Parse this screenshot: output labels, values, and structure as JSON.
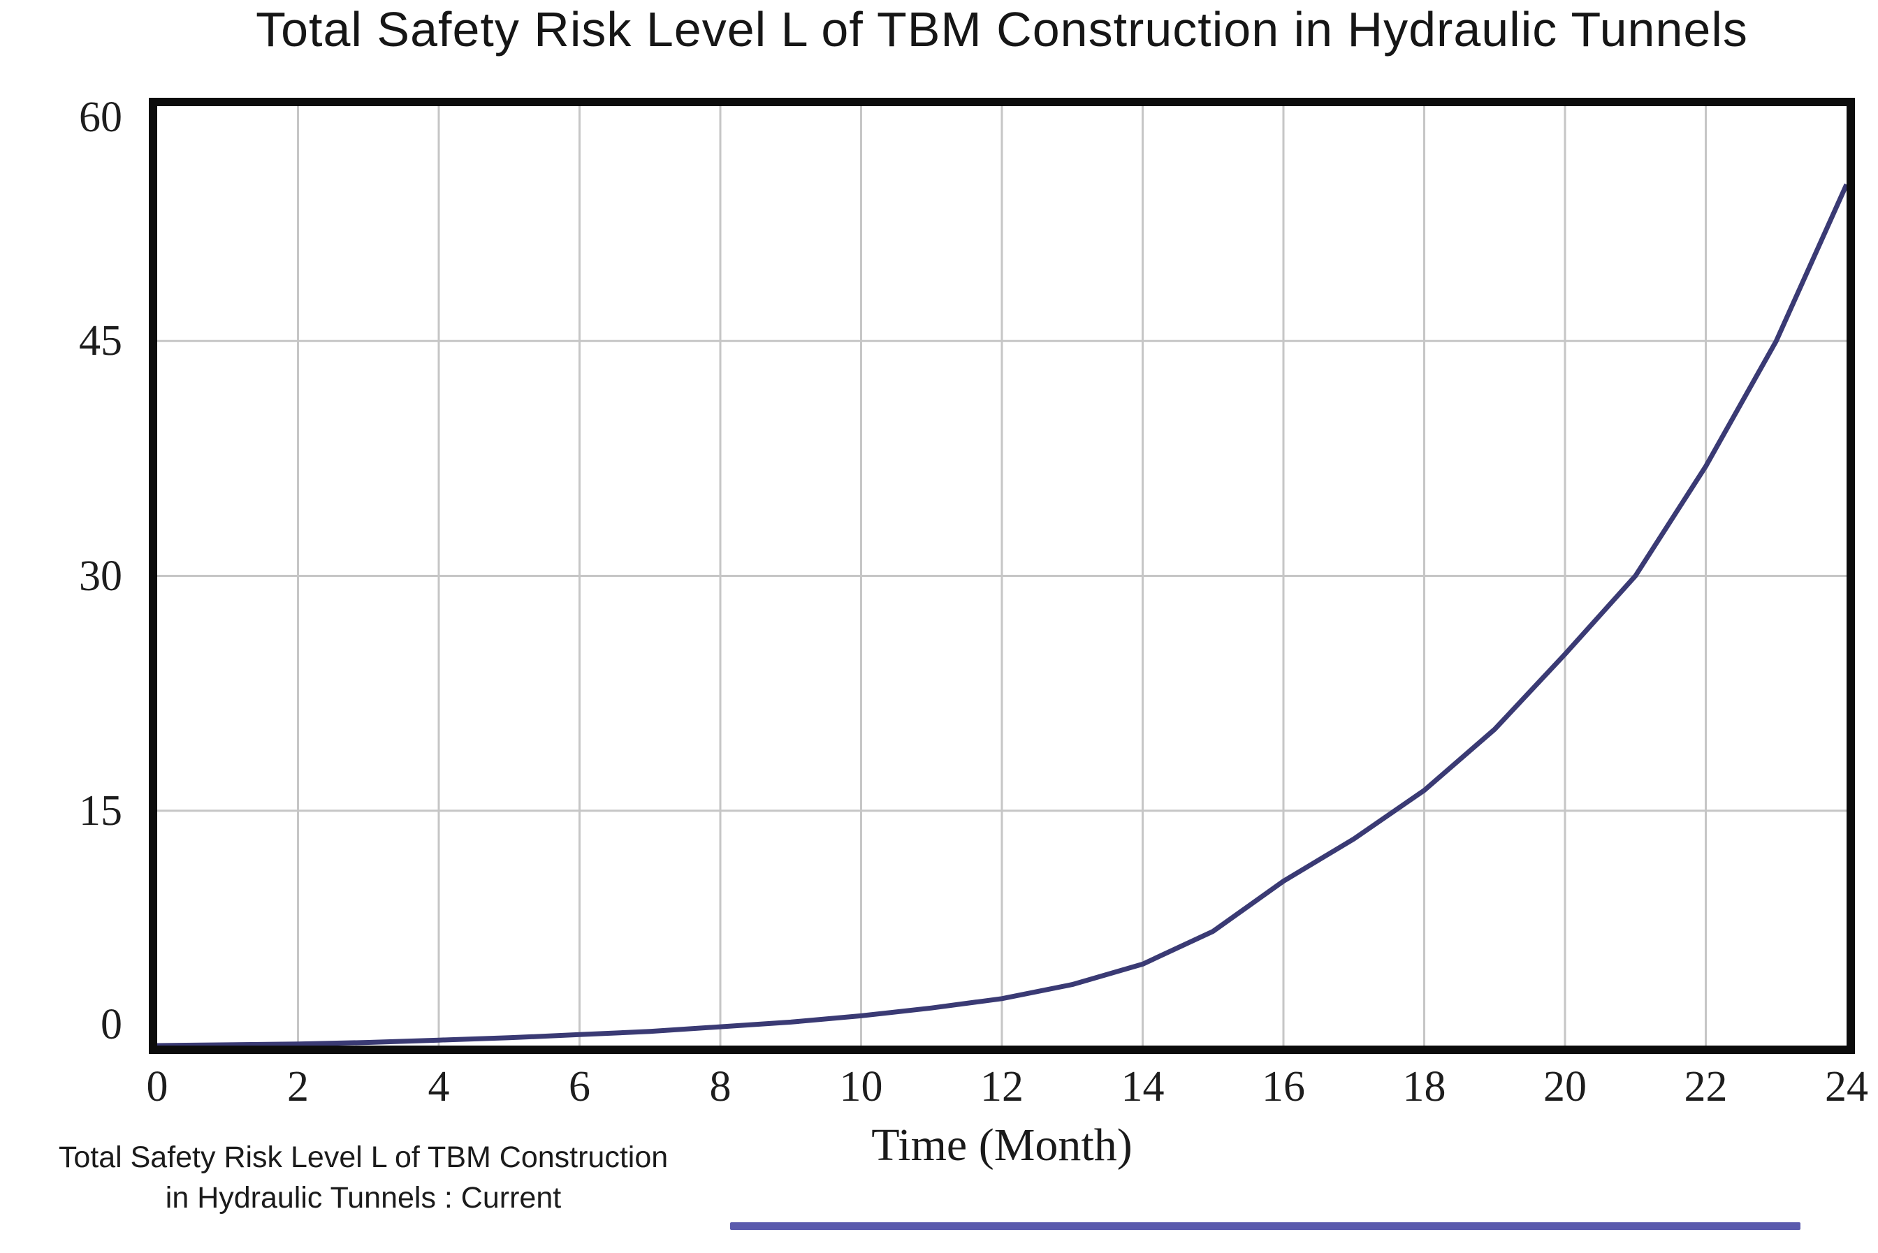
{
  "title": "Total Safety Risk Level L of TBM Construction in Hydraulic Tunnels",
  "colors": {
    "curve": "#3a3a74",
    "legend_line": "#5a5aad",
    "gridline": "#c6c6c6",
    "plot_border": "#0c0c0c",
    "text": "#1a1a1a"
  },
  "chart_data": {
    "type": "line",
    "title": "Total Safety Risk Level L of TBM Construction in Hydraulic Tunnels",
    "xlabel": "Time (Month)",
    "ylabel": "",
    "xlim": [
      0,
      24
    ],
    "ylim": [
      0,
      60
    ],
    "x_ticks": [
      0,
      2,
      4,
      6,
      8,
      10,
      12,
      14,
      16,
      18,
      20,
      22,
      24
    ],
    "y_ticks": [
      0,
      15,
      30,
      45,
      60
    ],
    "grid": true,
    "legend_position": "bottom-left",
    "series": [
      {
        "name": "Total Safety Risk Level L of TBM Construction in Hydraulic Tunnels : Current",
        "color": "#3a3a74",
        "x": [
          0,
          1,
          2,
          3,
          4,
          5,
          6,
          7,
          8,
          9,
          10,
          11,
          12,
          13,
          14,
          15,
          16,
          17,
          18,
          19,
          20,
          21,
          22,
          23,
          24
        ],
        "values": [
          0,
          0.05,
          0.1,
          0.2,
          0.35,
          0.5,
          0.7,
          0.9,
          1.2,
          1.5,
          1.9,
          2.4,
          3.0,
          3.9,
          5.2,
          7.3,
          10.5,
          13.2,
          16.3,
          20.2,
          25,
          30,
          37,
          45,
          55
        ]
      }
    ]
  },
  "legend": {
    "label_line1": "Total Safety Risk Level L of TBM Construction",
    "label_line2": "in Hydraulic Tunnels : Current",
    "line_color": "#5a5aad"
  }
}
